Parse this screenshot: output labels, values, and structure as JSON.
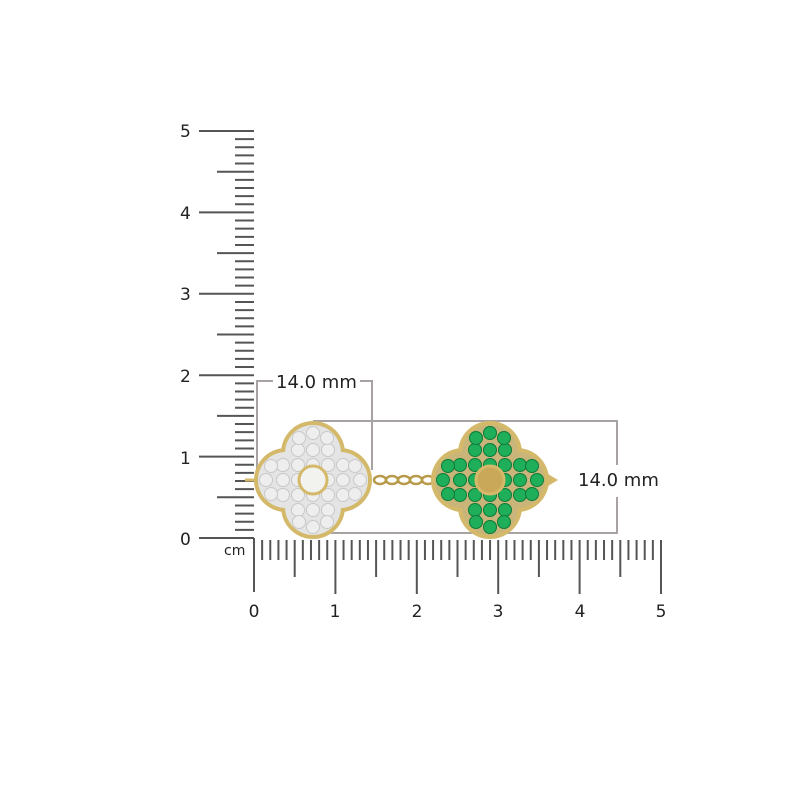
{
  "ruler": {
    "unit_label": "cm",
    "vertical_labels": [
      "0",
      "1",
      "2",
      "3",
      "4",
      "5"
    ],
    "horizontal_labels": [
      "0",
      "1",
      "2",
      "3",
      "4",
      "5"
    ],
    "tick_color": "#555555"
  },
  "dimensions": {
    "width_label": "14.0 mm",
    "height_label": "14.0 mm",
    "line_color": "#a9a2a2"
  },
  "product": {
    "left_motif_stone": "white",
    "right_motif_stone": "green",
    "metal_color": "#d4b96a",
    "stone_green": "#1fae5a",
    "stone_white": "#eeeeee"
  }
}
